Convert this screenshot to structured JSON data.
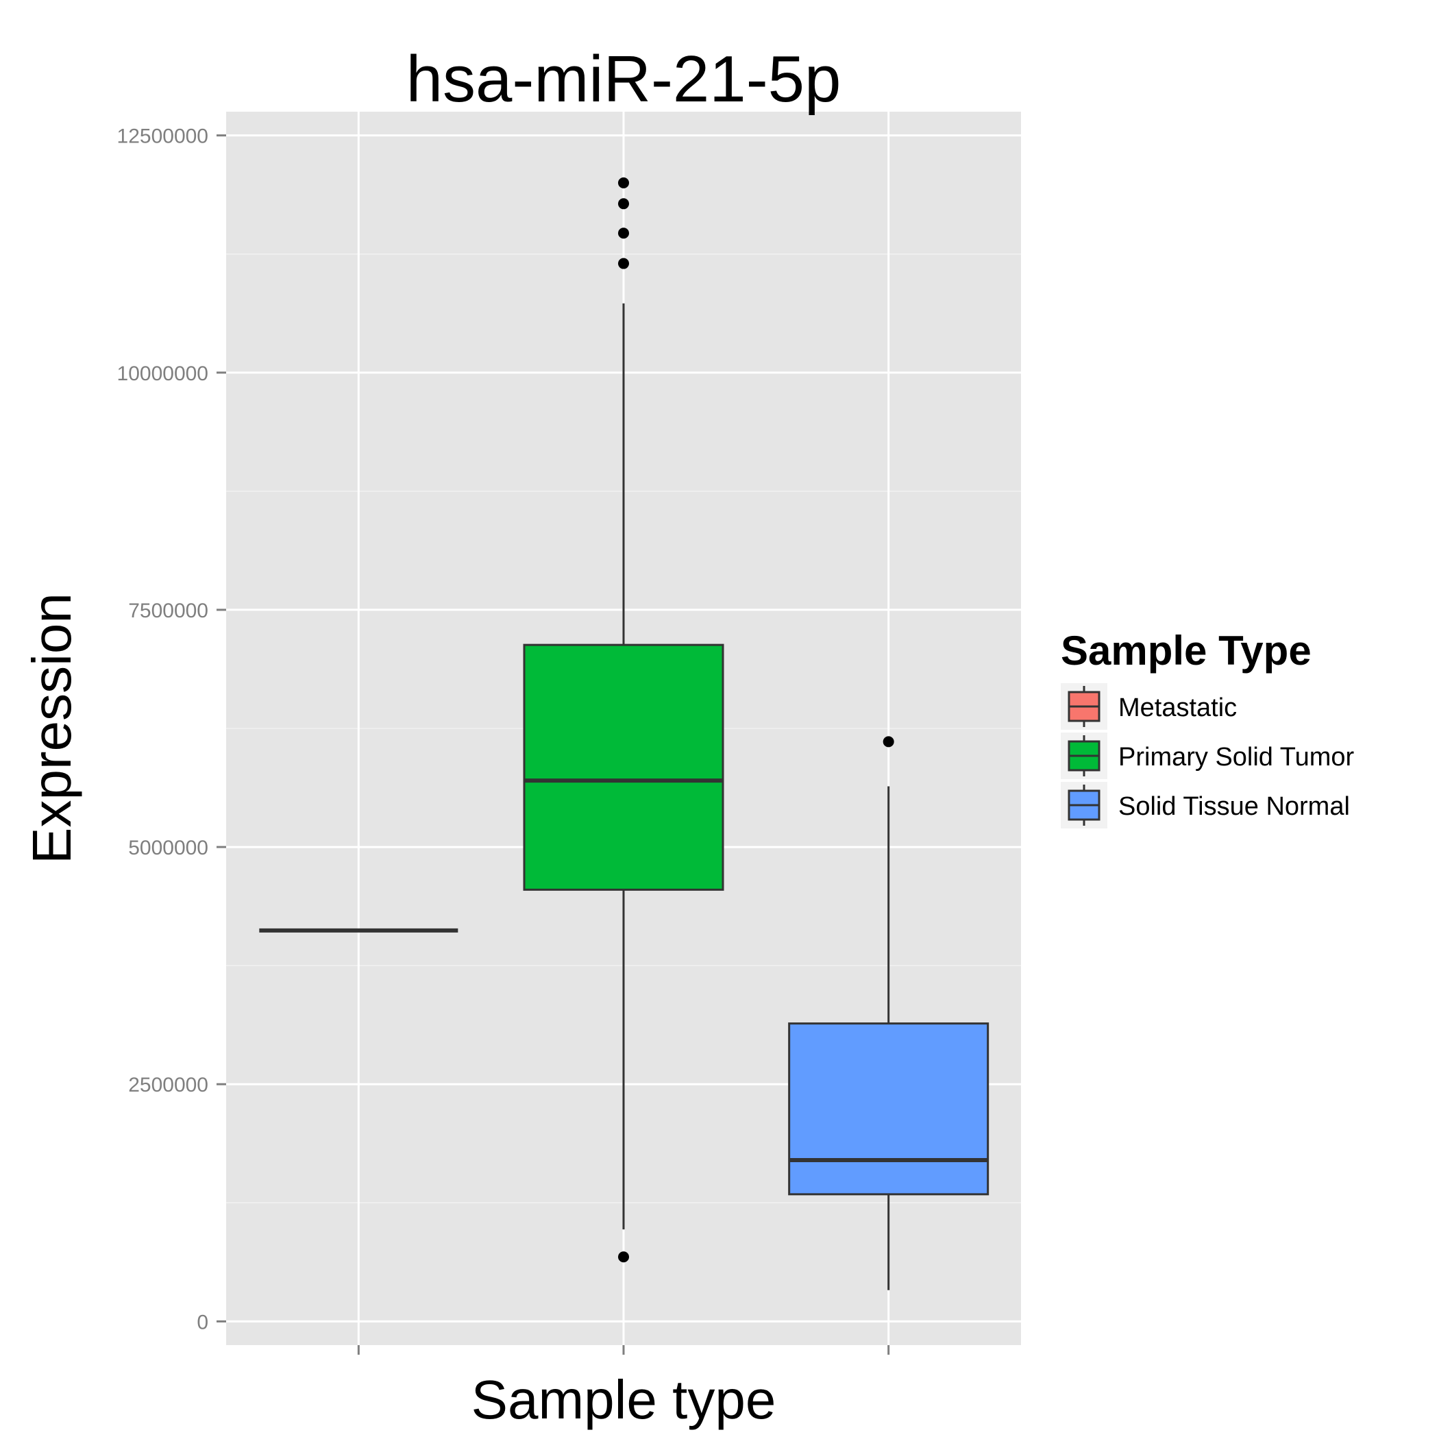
{
  "chart_data": {
    "type": "boxplot",
    "title": "hsa-miR-21-5p",
    "xlabel": "Sample type",
    "ylabel": "Expression",
    "ylim": [
      -250000,
      12750000
    ],
    "yticks": [
      0,
      2500000,
      5000000,
      7500000,
      10000000,
      12500000
    ],
    "ytick_labels": [
      "0",
      "2500000",
      "5000000",
      "7500000",
      "10000000",
      "12500000"
    ],
    "grid": true,
    "legend": {
      "title": "Sample Type",
      "position": "right",
      "entries": [
        "Metastatic",
        "Primary Solid Tumor",
        "Solid Tissue Normal"
      ]
    },
    "categories": [
      "Metastatic",
      "Primary Solid Tumor",
      "Solid Tissue Normal"
    ],
    "boxes": [
      {
        "name": "Metastatic",
        "color": "#F8766D",
        "q1": 4120000,
        "median": 4120000,
        "q3": 4120000,
        "whisker_low": 4120000,
        "whisker_high": 4120000,
        "outliers": []
      },
      {
        "name": "Primary Solid Tumor",
        "color": "#00BA38",
        "q1": 4550000,
        "median": 5700000,
        "q3": 7130000,
        "whisker_low": 970000,
        "whisker_high": 10730000,
        "outliers": [
          12000000,
          11780000,
          11470000,
          11150000,
          680000
        ]
      },
      {
        "name": "Solid Tissue Normal",
        "color": "#619CFF",
        "q1": 1340000,
        "median": 1700000,
        "q3": 3140000,
        "whisker_low": 330000,
        "whisker_high": 5640000,
        "outliers": [
          6110000
        ]
      }
    ]
  }
}
